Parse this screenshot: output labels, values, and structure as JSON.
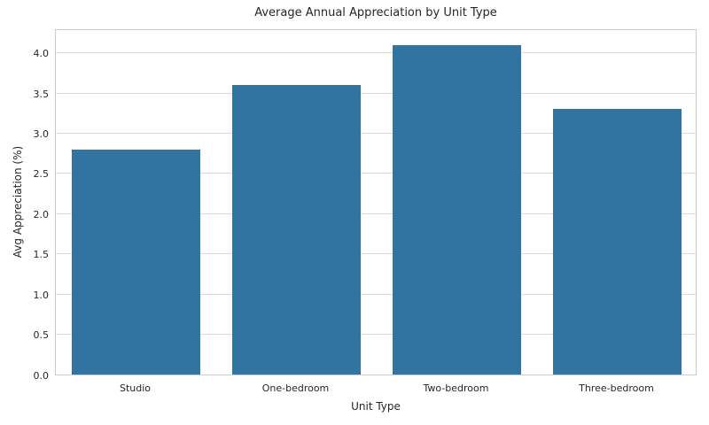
{
  "chart_data": {
    "type": "bar",
    "title": "Average Annual Appreciation by Unit Type",
    "xlabel": "Unit Type",
    "ylabel": "Avg Appreciation (%)",
    "categories": [
      "Studio",
      "One-bedroom",
      "Two-bedroom",
      "Three-bedroom"
    ],
    "values": [
      2.8,
      3.6,
      4.1,
      3.3
    ],
    "ylim": [
      0,
      4.305
    ],
    "yticks": [
      0.0,
      0.5,
      1.0,
      1.5,
      2.0,
      2.5,
      3.0,
      3.5,
      4.0
    ],
    "grid": "horizontal",
    "legend": "none",
    "bar_width_fraction": 0.8,
    "colors": {
      "bar": "#3274a1",
      "grid": "#d9d9d9",
      "axes_edge": "#cccccc",
      "text": "#262626",
      "background": "#ffffff"
    }
  }
}
